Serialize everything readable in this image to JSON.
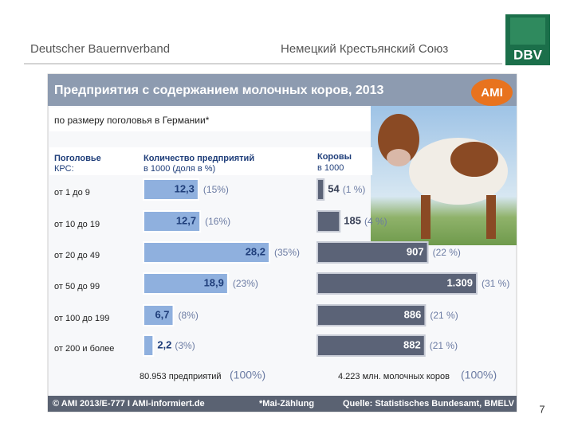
{
  "header": {
    "left": "Deutscher Bauernverband",
    "center": "Немецкий Крестьянский Союз",
    "logo": "DBV"
  },
  "title": "Предприятия с содержанием молочных коров, 2013",
  "logo": "AMI",
  "subtitle": "по размеру поголовья в Германии*",
  "row_header": [
    "Поголовье",
    "КРС:"
  ],
  "chart_data": [
    {
      "type": "bar",
      "orientation": "horizontal",
      "title": [
        "Количество предприятий",
        "в 1000 (доля в %)"
      ],
      "categories": [
        "от 1 до 9",
        "от 10 до 19",
        "от 20 до 49",
        "от 50 до 99",
        "от 100 до 199",
        "от 200 и более"
      ],
      "values": [
        12.3,
        12.7,
        28.2,
        18.9,
        6.7,
        2.2
      ],
      "value_labels": [
        "12,3",
        "12,7",
        "28,2",
        "18,9",
        "6,7",
        "2,2"
      ],
      "share_labels": [
        "(15%)",
        "(16%)",
        "(35%)",
        "(23%)",
        "(8%)",
        "(3%)"
      ],
      "color": "#8fb0de",
      "total_label": "80.953 предприятий",
      "total_share": "(100%)"
    },
    {
      "type": "bar",
      "orientation": "horizontal",
      "title": [
        "Коровы",
        "в 1000"
      ],
      "values": [
        54,
        185,
        907,
        1309,
        886,
        882
      ],
      "value_labels": [
        "54",
        "185",
        "907",
        "1.309",
        "886",
        "882"
      ],
      "share_labels": [
        "(1 %)",
        "(4 %)",
        "(22 %)",
        "(31 %)",
        "(21 %)",
        "(21 %)"
      ],
      "color": "#5b6377",
      "total_label": "4.223 млн. молочных коров",
      "total_share": "(100%)"
    }
  ],
  "footer": {
    "left": "© AMI 2013/E-777 I AMI-informiert.de",
    "center": "*Mai-Zählung",
    "right": "Quelle: Statistisches Bundesamt, BMELV"
  },
  "page_number": "7"
}
